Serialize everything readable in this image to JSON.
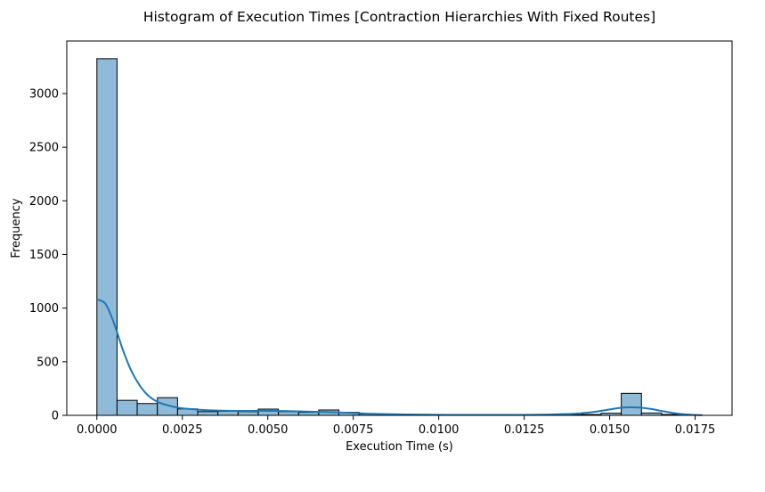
{
  "chart_data": {
    "type": "bar",
    "title": "Histogram of Execution Times [Contraction Hierarchies With Fixed Routes]",
    "xlabel": "Execution Time (s)",
    "ylabel": "Frequency",
    "xlim": [
      -0.00088,
      0.01858
    ],
    "ylim": [
      0,
      3490
    ],
    "xticks": [
      {
        "value": 0.0,
        "label": "0.0000"
      },
      {
        "value": 0.0025,
        "label": "0.0025"
      },
      {
        "value": 0.005,
        "label": "0.0050"
      },
      {
        "value": 0.0075,
        "label": "0.0075"
      },
      {
        "value": 0.01,
        "label": "0.0100"
      },
      {
        "value": 0.0125,
        "label": "0.0125"
      },
      {
        "value": 0.015,
        "label": "0.0150"
      },
      {
        "value": 0.0175,
        "label": "0.0175"
      }
    ],
    "yticks": [
      {
        "value": 0,
        "label": "0"
      },
      {
        "value": 500,
        "label": "500"
      },
      {
        "value": 1000,
        "label": "1000"
      },
      {
        "value": 1500,
        "label": "1500"
      },
      {
        "value": 2000,
        "label": "2000"
      },
      {
        "value": 2500,
        "label": "2500"
      },
      {
        "value": 3000,
        "label": "3000"
      }
    ],
    "bin_edges": [
      0.0,
      0.00059,
      0.00118,
      0.00177,
      0.00236,
      0.00295,
      0.00354,
      0.00413,
      0.00472,
      0.00531,
      0.0059,
      0.00649,
      0.00708,
      0.00767,
      0.00826,
      0.00885,
      0.00944,
      0.01003,
      0.01062,
      0.01121,
      0.0118,
      0.01239,
      0.01298,
      0.01357,
      0.01416,
      0.01475,
      0.01534,
      0.01593,
      0.01652,
      0.01711,
      0.0177
    ],
    "values": [
      3325,
      140,
      110,
      165,
      60,
      35,
      38,
      35,
      58,
      35,
      28,
      50,
      28,
      12,
      5,
      3,
      2,
      2,
      2,
      2,
      2,
      3,
      3,
      5,
      8,
      20,
      205,
      22,
      8,
      4
    ],
    "kde": {
      "x": [
        0.0,
        0.00025,
        0.0005,
        0.00075,
        0.001,
        0.00125,
        0.0015,
        0.00175,
        0.002,
        0.00225,
        0.0025,
        0.003,
        0.0035,
        0.004,
        0.0045,
        0.005,
        0.0055,
        0.006,
        0.0065,
        0.007,
        0.0075,
        0.008,
        0.009,
        0.01,
        0.011,
        0.012,
        0.013,
        0.0135,
        0.014,
        0.0145,
        0.015,
        0.0153,
        0.0156,
        0.0159,
        0.0162,
        0.0165,
        0.0168,
        0.0171,
        0.0174,
        0.0177
      ],
      "y": [
        1080,
        1040,
        860,
        620,
        420,
        280,
        185,
        130,
        100,
        80,
        65,
        52,
        45,
        42,
        42,
        42,
        40,
        36,
        32,
        28,
        22,
        15,
        8,
        5,
        4,
        4,
        6,
        10,
        16,
        30,
        55,
        70,
        75,
        72,
        60,
        42,
        25,
        12,
        5,
        2
      ]
    },
    "colors": {
      "bar_fill": "#8fbbd9",
      "bar_edge": "#000000",
      "kde_line": "#1f77b4"
    },
    "grid": false,
    "legend": "none"
  }
}
